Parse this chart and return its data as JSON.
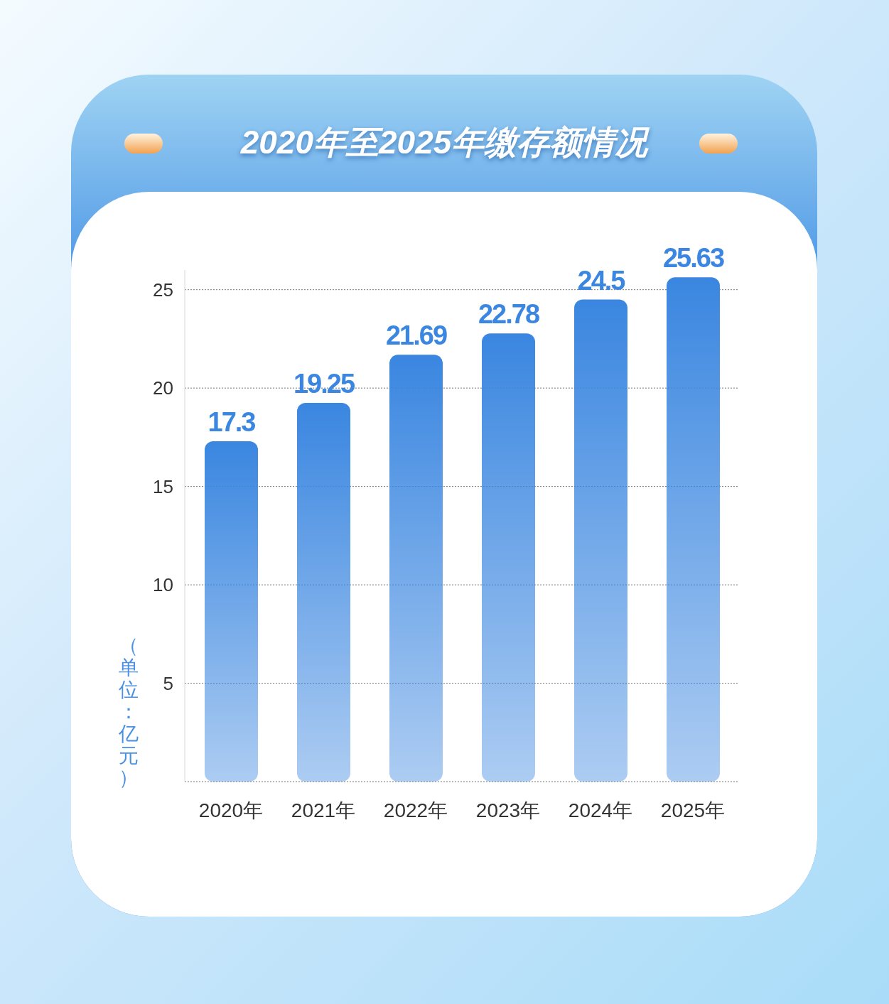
{
  "chart_data": {
    "type": "bar",
    "title": "2020年至2025年缴存额情况",
    "ylabel": "（单位：亿元）",
    "categories": [
      "2020年",
      "2021年",
      "2022年",
      "2023年",
      "2024年",
      "2025年"
    ],
    "values": [
      17.3,
      19.25,
      21.69,
      22.78,
      24.5,
      25.63
    ],
    "color": "#3a86e0",
    "ylim": [
      0,
      26
    ],
    "yticks": [
      {
        "value": 0,
        "label": null
      },
      5,
      10,
      15,
      20,
      25
    ],
    "grid": "y",
    "data_labels": true
  }
}
